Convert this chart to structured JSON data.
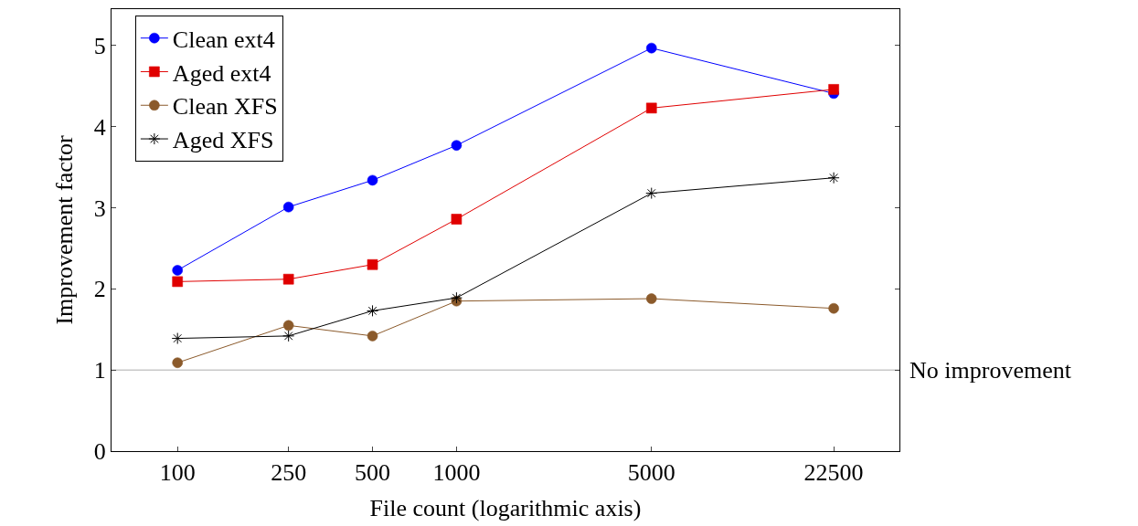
{
  "chart_data": {
    "type": "line",
    "xlabel": "File count (logarithmic axis)",
    "ylabel": "Improvement factor",
    "log": "x",
    "x": [
      100,
      250,
      500,
      1000,
      5000,
      22500
    ],
    "xlim": [
      58,
      38700
    ],
    "xticks": [
      100,
      250,
      500,
      1000,
      5000,
      22500
    ],
    "ylim": [
      0,
      5.45
    ],
    "yticks": [
      0,
      1,
      2,
      3,
      4,
      5
    ],
    "grid": false,
    "legend": "top left",
    "series": [
      {
        "name": "Clean ext4",
        "color": "#0000ff",
        "marker": "circle",
        "values": [
          2.23,
          3.01,
          3.34,
          3.77,
          4.97,
          4.41
        ]
      },
      {
        "name": "Aged ext4",
        "color": "#e00000",
        "marker": "square",
        "values": [
          2.09,
          2.12,
          2.3,
          2.86,
          4.23,
          4.46
        ]
      },
      {
        "name": "Clean XFS",
        "color": "#8b5a2b",
        "marker": "circle",
        "values": [
          1.09,
          1.55,
          1.42,
          1.85,
          1.88,
          1.76
        ]
      },
      {
        "name": "Aged XFS",
        "color": "#000000",
        "marker": "cross",
        "values": [
          1.39,
          1.42,
          1.73,
          1.89,
          3.18,
          3.37
        ]
      }
    ],
    "ref_lines": [
      {
        "axis": "y",
        "value": 1,
        "label": "No improvement",
        "color": "#c8c8c8"
      }
    ]
  }
}
